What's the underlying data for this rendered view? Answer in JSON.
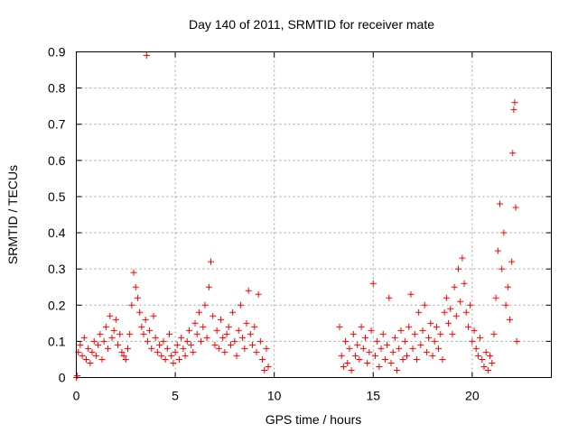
{
  "chart_data": {
    "type": "scatter",
    "title": "Day 140 of 2011, SRMTID for receiver mate",
    "xlabel": "GPS time / hours",
    "ylabel": "SRMTID / TECUs",
    "xlim": [
      0,
      24
    ],
    "ylim": [
      0,
      0.9
    ],
    "x_ticks": [
      0,
      5,
      10,
      15,
      20
    ],
    "x_tick_labels": [
      "0",
      "5",
      "10",
      "15",
      "20"
    ],
    "y_ticks": [
      0,
      0.1,
      0.2,
      0.3,
      0.4,
      0.5,
      0.6,
      0.7,
      0.8,
      0.9
    ],
    "y_tick_labels": [
      "0",
      "0.1",
      "0.2",
      "0.3",
      "0.4",
      "0.5",
      "0.6",
      "0.7",
      "0.8",
      "0.9"
    ],
    "grid": true,
    "marker": "+",
    "series": [
      {
        "name": "SRMTID",
        "color": "#ff0000",
        "points": [
          [
            0.0,
            0.0
          ],
          [
            0.05,
            0.005
          ],
          [
            0.1,
            0.07
          ],
          [
            0.2,
            0.09
          ],
          [
            0.3,
            0.06
          ],
          [
            0.4,
            0.11
          ],
          [
            0.5,
            0.05
          ],
          [
            0.6,
            0.08
          ],
          [
            0.7,
            0.04
          ],
          [
            0.8,
            0.07
          ],
          [
            0.9,
            0.1
          ],
          [
            1.0,
            0.06
          ],
          [
            1.1,
            0.09
          ],
          [
            1.2,
            0.12
          ],
          [
            1.3,
            0.05
          ],
          [
            1.4,
            0.1
          ],
          [
            1.5,
            0.14
          ],
          [
            1.6,
            0.08
          ],
          [
            1.7,
            0.17
          ],
          [
            1.8,
            0.11
          ],
          [
            1.9,
            0.13
          ],
          [
            2.0,
            0.16
          ],
          [
            2.1,
            0.09
          ],
          [
            2.2,
            0.12
          ],
          [
            2.3,
            0.07
          ],
          [
            2.4,
            0.06
          ],
          [
            2.5,
            0.05
          ],
          [
            2.6,
            0.08
          ],
          [
            2.7,
            0.12
          ],
          [
            2.8,
            0.2
          ],
          [
            2.9,
            0.29
          ],
          [
            3.0,
            0.25
          ],
          [
            3.1,
            0.22
          ],
          [
            3.2,
            0.18
          ],
          [
            3.3,
            0.14
          ],
          [
            3.4,
            0.12
          ],
          [
            3.5,
            0.16
          ],
          [
            3.55,
            0.89
          ],
          [
            3.6,
            0.1
          ],
          [
            3.7,
            0.13
          ],
          [
            3.8,
            0.08
          ],
          [
            3.9,
            0.17
          ],
          [
            4.0,
            0.11
          ],
          [
            4.1,
            0.07
          ],
          [
            4.2,
            0.09
          ],
          [
            4.3,
            0.06
          ],
          [
            4.4,
            0.1
          ],
          [
            4.5,
            0.05
          ],
          [
            4.6,
            0.08
          ],
          [
            4.7,
            0.12
          ],
          [
            4.8,
            0.06
          ],
          [
            4.9,
            0.04
          ],
          [
            5.0,
            0.07
          ],
          [
            5.1,
            0.09
          ],
          [
            5.2,
            0.05
          ],
          [
            5.3,
            0.11
          ],
          [
            5.4,
            0.08
          ],
          [
            5.5,
            0.06
          ],
          [
            5.6,
            0.1
          ],
          [
            5.7,
            0.13
          ],
          [
            5.8,
            0.09
          ],
          [
            5.9,
            0.07
          ],
          [
            6.0,
            0.15
          ],
          [
            6.1,
            0.12
          ],
          [
            6.2,
            0.18
          ],
          [
            6.3,
            0.1
          ],
          [
            6.4,
            0.14
          ],
          [
            6.5,
            0.2
          ],
          [
            6.6,
            0.11
          ],
          [
            6.7,
            0.25
          ],
          [
            6.8,
            0.32
          ],
          [
            6.9,
            0.17
          ],
          [
            7.0,
            0.09
          ],
          [
            7.1,
            0.13
          ],
          [
            7.2,
            0.08
          ],
          [
            7.3,
            0.16
          ],
          [
            7.4,
            0.11
          ],
          [
            7.5,
            0.07
          ],
          [
            7.6,
            0.12
          ],
          [
            7.7,
            0.14
          ],
          [
            7.8,
            0.09
          ],
          [
            7.9,
            0.18
          ],
          [
            8.0,
            0.1
          ],
          [
            8.1,
            0.06
          ],
          [
            8.2,
            0.13
          ],
          [
            8.3,
            0.2
          ],
          [
            8.4,
            0.11
          ],
          [
            8.5,
            0.08
          ],
          [
            8.6,
            0.15
          ],
          [
            8.7,
            0.24
          ],
          [
            8.8,
            0.12
          ],
          [
            8.9,
            0.09
          ],
          [
            9.0,
            0.14
          ],
          [
            9.1,
            0.07
          ],
          [
            9.2,
            0.23
          ],
          [
            9.3,
            0.1
          ],
          [
            9.4,
            0.05
          ],
          [
            9.5,
            0.02
          ],
          [
            9.6,
            0.08
          ],
          [
            9.7,
            0.03
          ],
          [
            13.3,
            0.14
          ],
          [
            13.4,
            0.06
          ],
          [
            13.5,
            0.03
          ],
          [
            13.6,
            0.1
          ],
          [
            13.7,
            0.04
          ],
          [
            13.8,
            0.08
          ],
          [
            13.9,
            0.02
          ],
          [
            14.0,
            0.12
          ],
          [
            14.1,
            0.06
          ],
          [
            14.2,
            0.09
          ],
          [
            14.3,
            0.05
          ],
          [
            14.4,
            0.14
          ],
          [
            14.5,
            0.08
          ],
          [
            14.6,
            0.11
          ],
          [
            14.7,
            0.04
          ],
          [
            14.8,
            0.07
          ],
          [
            14.9,
            0.13
          ],
          [
            15.0,
            0.26
          ],
          [
            15.1,
            0.06
          ],
          [
            15.2,
            0.1
          ],
          [
            15.3,
            0.03
          ],
          [
            15.4,
            0.08
          ],
          [
            15.5,
            0.12
          ],
          [
            15.6,
            0.05
          ],
          [
            15.7,
            0.09
          ],
          [
            15.8,
            0.22
          ],
          [
            15.9,
            0.04
          ],
          [
            16.0,
            0.07
          ],
          [
            16.1,
            0.11
          ],
          [
            16.2,
            0.02
          ],
          [
            16.3,
            0.08
          ],
          [
            16.4,
            0.13
          ],
          [
            16.5,
            0.05
          ],
          [
            16.6,
            0.1
          ],
          [
            16.7,
            0.06
          ],
          [
            16.8,
            0.14
          ],
          [
            16.9,
            0.23
          ],
          [
            17.0,
            0.08
          ],
          [
            17.1,
            0.12
          ],
          [
            17.2,
            0.05
          ],
          [
            17.3,
            0.18
          ],
          [
            17.4,
            0.09
          ],
          [
            17.5,
            0.13
          ],
          [
            17.6,
            0.2
          ],
          [
            17.7,
            0.07
          ],
          [
            17.8,
            0.11
          ],
          [
            17.9,
            0.15
          ],
          [
            18.0,
            0.06
          ],
          [
            18.1,
            0.1
          ],
          [
            18.2,
            0.14
          ],
          [
            18.3,
            0.08
          ],
          [
            18.4,
            0.12
          ],
          [
            18.5,
            0.05
          ],
          [
            18.6,
            0.18
          ],
          [
            18.7,
            0.22
          ],
          [
            18.8,
            0.15
          ],
          [
            18.9,
            0.19
          ],
          [
            19.0,
            0.12
          ],
          [
            19.1,
            0.25
          ],
          [
            19.2,
            0.17
          ],
          [
            19.3,
            0.3
          ],
          [
            19.4,
            0.21
          ],
          [
            19.5,
            0.33
          ],
          [
            19.6,
            0.26
          ],
          [
            19.7,
            0.18
          ],
          [
            19.8,
            0.14
          ],
          [
            19.9,
            0.2
          ],
          [
            20.0,
            0.1
          ],
          [
            20.1,
            0.13
          ],
          [
            20.2,
            0.08
          ],
          [
            20.3,
            0.06
          ],
          [
            20.4,
            0.11
          ],
          [
            20.5,
            0.05
          ],
          [
            20.6,
            0.03
          ],
          [
            20.7,
            0.07
          ],
          [
            20.8,
            0.02
          ],
          [
            20.9,
            0.06
          ],
          [
            21.0,
            0.04
          ],
          [
            21.1,
            0.12
          ],
          [
            21.2,
            0.22
          ],
          [
            21.3,
            0.35
          ],
          [
            21.4,
            0.48
          ],
          [
            21.5,
            0.3
          ],
          [
            21.6,
            0.4
          ],
          [
            21.7,
            0.2
          ],
          [
            21.8,
            0.25
          ],
          [
            21.9,
            0.16
          ],
          [
            22.0,
            0.32
          ],
          [
            22.05,
            0.62
          ],
          [
            22.1,
            0.74
          ],
          [
            22.15,
            0.76
          ],
          [
            22.2,
            0.47
          ],
          [
            22.25,
            0.1
          ]
        ]
      }
    ]
  }
}
